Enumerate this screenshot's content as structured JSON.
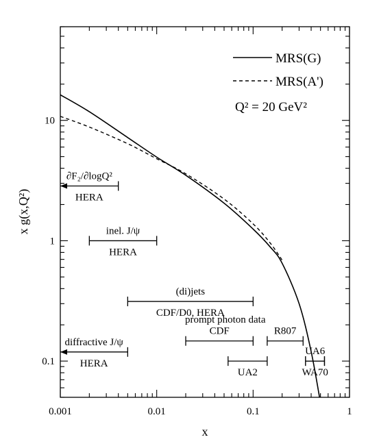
{
  "chart_data": {
    "type": "line",
    "title": "",
    "xlabel": "x",
    "ylabel": "x g(x,Q²)",
    "x_scale": "log",
    "y_scale": "log",
    "xlim": [
      0.001,
      1
    ],
    "ylim": [
      0.05,
      60
    ],
    "x_ticks": [
      {
        "value": 0.001,
        "label": "0.001"
      },
      {
        "value": 0.01,
        "label": "0.01"
      },
      {
        "value": 0.1,
        "label": "0.1"
      },
      {
        "value": 1,
        "label": "1"
      }
    ],
    "y_ticks": [
      {
        "value": 0.1,
        "label": "0.1"
      },
      {
        "value": 1,
        "label": "1"
      },
      {
        "value": 10,
        "label": "10"
      }
    ],
    "legend_position": "top-right",
    "legend_note": "Q² = 20 GeV²",
    "grid": false,
    "series": [
      {
        "name": "MRS(G)",
        "style": "solid",
        "x": [
          0.001,
          0.002,
          0.005,
          0.01,
          0.02,
          0.05,
          0.1,
          0.15,
          0.2,
          0.3,
          0.4,
          0.5
        ],
        "y": [
          16.3,
          11.8,
          7.2,
          4.95,
          3.5,
          2.05,
          1.25,
          0.89,
          0.65,
          0.3,
          0.12,
          0.045
        ]
      },
      {
        "name": "MRS(A')",
        "style": "dashed",
        "x": [
          0.001,
          0.002,
          0.005,
          0.01,
          0.02,
          0.05,
          0.1,
          0.15,
          0.2
        ],
        "y": [
          10.8,
          8.8,
          6.4,
          4.8,
          3.6,
          2.22,
          1.38,
          0.96,
          0.69
        ]
      }
    ],
    "annotations": [
      {
        "id": "dis",
        "label_top": "∂F₂/∂logQ²",
        "label_bottom": "HERA",
        "x_range": [
          0.001,
          0.004
        ],
        "y": 2.85,
        "arrow_left": true
      },
      {
        "id": "jpsi",
        "label_top": "inel. J/ψ",
        "label_bottom": "HERA",
        "x_range": [
          0.002,
          0.01
        ],
        "y": 1.0,
        "arrow_left": false
      },
      {
        "id": "dijets",
        "label_top": "(di)jets",
        "label_bottom": "CDF/D0, HERA",
        "x_range": [
          0.005,
          0.1
        ],
        "y": 0.313,
        "arrow_left": false
      },
      {
        "id": "diffractive",
        "label_top": "diffractive J/ψ",
        "label_bottom": "HERA",
        "x_range": [
          0.001,
          0.005
        ],
        "y": 0.119,
        "arrow_left": true
      },
      {
        "id": "cdf-photon",
        "label_top": "CDF",
        "label_bottom": "",
        "x_range": [
          0.02,
          0.1
        ],
        "y": 0.147,
        "arrow_left": false
      },
      {
        "id": "r807",
        "label_top": "R807",
        "label_bottom": "",
        "x_range": [
          0.14,
          0.33
        ],
        "y": 0.147,
        "arrow_left": false
      },
      {
        "id": "ua2",
        "label_top": "",
        "label_bottom": "UA2",
        "x_range": [
          0.055,
          0.14
        ],
        "y": 0.1,
        "arrow_left": false
      },
      {
        "id": "ua6",
        "label_top": "UA6",
        "label_bottom": "",
        "x_range": [
          0.35,
          0.55
        ],
        "y": 0.1,
        "arrow_left": false
      },
      {
        "id": "wa70",
        "label_top": "",
        "label_bottom": "WA70",
        "x_range": [
          0.35,
          0.55
        ],
        "y": 0.1,
        "arrow_left": false
      }
    ],
    "group_label": "prompt photon data"
  }
}
